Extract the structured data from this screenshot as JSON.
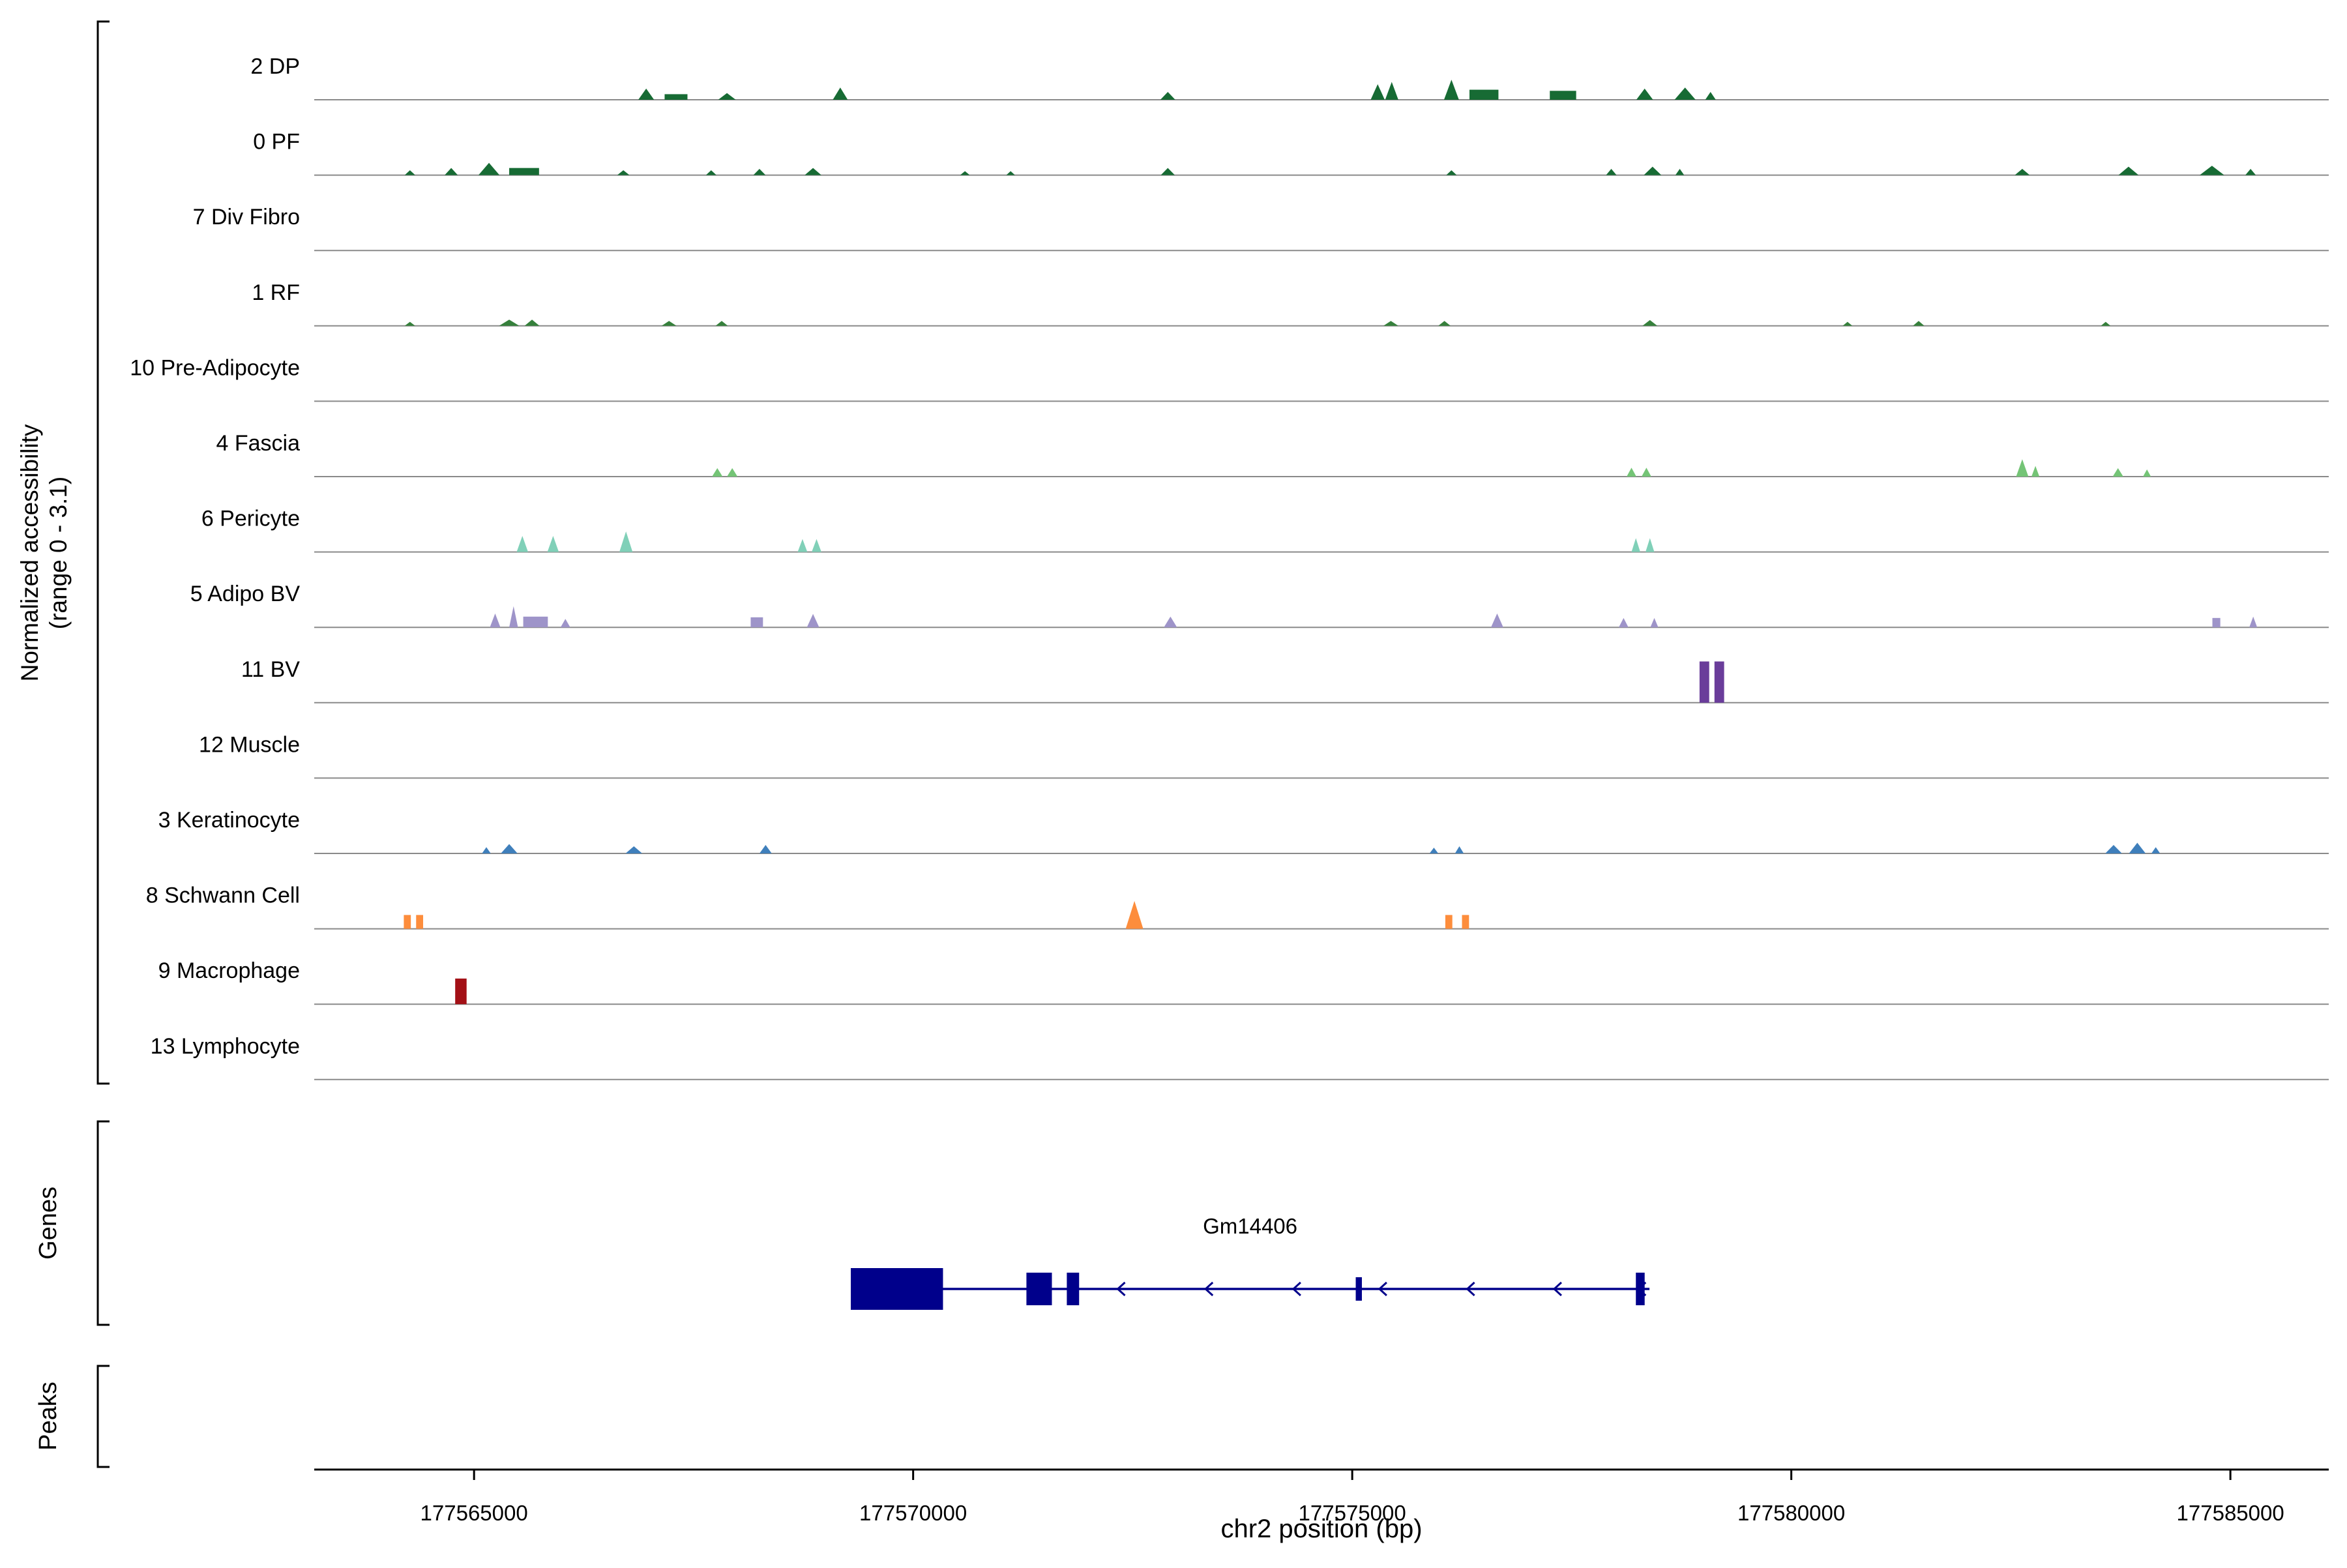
{
  "y_axis": {
    "label_line1": "Normalized accessibility",
    "label_line2": "(range 0 - 3.1)"
  },
  "sections": {
    "genes_label": "Genes",
    "peaks_label": "Peaks"
  },
  "x_axis": {
    "label": "chr2 position (bp)",
    "tick_labels": [
      "177565000",
      "177570000",
      "177575000",
      "177580000",
      "177585000"
    ]
  },
  "chart_data": {
    "type": "area",
    "title": "",
    "xlabel": "chr2 position (bp)",
    "region": {
      "chrom": "chr2",
      "start": 177563180,
      "end": 177586120
    },
    "track_value_range": [
      0,
      3.1
    ],
    "x_ticks": [
      177565000,
      177570000,
      177575000,
      177580000,
      177585000
    ],
    "grid": false,
    "tracks": [
      {
        "label": "2 DP",
        "color": "#176b34",
        "peaks": [
          [
            177566960,
            180,
            0.5,
            "t"
          ],
          [
            177567300,
            260,
            0.25,
            "r"
          ],
          [
            177567880,
            200,
            0.3,
            "t"
          ],
          [
            177569170,
            170,
            0.55,
            "t"
          ],
          [
            177572900,
            170,
            0.35,
            "t"
          ],
          [
            177575290,
            160,
            0.7,
            "t"
          ],
          [
            177575450,
            150,
            0.8,
            "t"
          ],
          [
            177576130,
            170,
            0.9,
            "t"
          ],
          [
            177576500,
            330,
            0.45,
            "r"
          ],
          [
            177577400,
            300,
            0.4,
            "r"
          ],
          [
            177578330,
            190,
            0.5,
            "t"
          ],
          [
            177578790,
            240,
            0.55,
            "t"
          ],
          [
            177579080,
            120,
            0.35,
            "t"
          ]
        ]
      },
      {
        "label": "0 PF",
        "color": "#176b34",
        "peaks": [
          [
            177564270,
            120,
            0.22,
            "t"
          ],
          [
            177564740,
            150,
            0.32,
            "t"
          ],
          [
            177565170,
            240,
            0.55,
            "t"
          ],
          [
            177565570,
            340,
            0.32,
            "r"
          ],
          [
            177566700,
            140,
            0.22,
            "t"
          ],
          [
            177567700,
            120,
            0.22,
            "t"
          ],
          [
            177568250,
            140,
            0.28,
            "t"
          ],
          [
            177568860,
            190,
            0.32,
            "t"
          ],
          [
            177570590,
            110,
            0.18,
            "t"
          ],
          [
            177571110,
            100,
            0.18,
            "t"
          ],
          [
            177572900,
            160,
            0.32,
            "t"
          ],
          [
            177576130,
            120,
            0.22,
            "t"
          ],
          [
            177577950,
            120,
            0.28,
            "t"
          ],
          [
            177578420,
            200,
            0.38,
            "t"
          ],
          [
            177578730,
            100,
            0.28,
            "t"
          ],
          [
            177582630,
            170,
            0.28,
            "t"
          ],
          [
            177583840,
            230,
            0.38,
            "t"
          ],
          [
            177584790,
            280,
            0.42,
            "t"
          ],
          [
            177585230,
            120,
            0.28,
            "t"
          ]
        ]
      },
      {
        "label": "7 Div Fibro",
        "color": null,
        "peaks": []
      },
      {
        "label": "1 RF",
        "color": "#35803b",
        "peaks": [
          [
            177564270,
            120,
            0.18,
            "t"
          ],
          [
            177565400,
            230,
            0.28,
            "t"
          ],
          [
            177565660,
            170,
            0.28,
            "t"
          ],
          [
            177567220,
            170,
            0.22,
            "t"
          ],
          [
            177567820,
            140,
            0.22,
            "t"
          ],
          [
            177575440,
            170,
            0.22,
            "t"
          ],
          [
            177576050,
            140,
            0.22,
            "t"
          ],
          [
            177578390,
            170,
            0.26,
            "t"
          ],
          [
            177580640,
            110,
            0.18,
            "t"
          ],
          [
            177581450,
            130,
            0.22,
            "t"
          ],
          [
            177583580,
            110,
            0.18,
            "t"
          ]
        ]
      },
      {
        "label": "10 Pre-Adipocyte",
        "color": null,
        "peaks": []
      },
      {
        "label": "4 Fascia",
        "color": "#74c476",
        "peaks": [
          [
            177567770,
            120,
            0.38,
            "t"
          ],
          [
            177567940,
            120,
            0.38,
            "t"
          ],
          [
            177578180,
            110,
            0.4,
            "t"
          ],
          [
            177578350,
            110,
            0.4,
            "t"
          ],
          [
            177582630,
            140,
            0.78,
            "t"
          ],
          [
            177582780,
            90,
            0.48,
            "t"
          ],
          [
            177583720,
            120,
            0.38,
            "t"
          ],
          [
            177584050,
            90,
            0.32,
            "t"
          ]
        ]
      },
      {
        "label": "6 Pericyte",
        "color": "#80d0b8",
        "peaks": [
          [
            177565550,
            130,
            0.72,
            "t"
          ],
          [
            177565900,
            130,
            0.72,
            "t"
          ],
          [
            177566730,
            150,
            0.92,
            "t"
          ],
          [
            177568740,
            110,
            0.58,
            "t"
          ],
          [
            177568900,
            110,
            0.58,
            "t"
          ],
          [
            177578230,
            100,
            0.62,
            "t"
          ],
          [
            177578390,
            100,
            0.62,
            "t"
          ]
        ]
      },
      {
        "label": "5 Adipo BV",
        "color": "#9e94c9",
        "peaks": [
          [
            177565240,
            120,
            0.62,
            "t"
          ],
          [
            177565450,
            100,
            0.95,
            "t"
          ],
          [
            177565700,
            280,
            0.48,
            "r"
          ],
          [
            177566040,
            110,
            0.38,
            "t"
          ],
          [
            177568220,
            140,
            0.45,
            "r"
          ],
          [
            177568860,
            140,
            0.6,
            "t"
          ],
          [
            177572930,
            150,
            0.48,
            "t"
          ],
          [
            177576650,
            140,
            0.62,
            "t"
          ],
          [
            177578090,
            110,
            0.42,
            "t"
          ],
          [
            177578440,
            90,
            0.42,
            "t"
          ],
          [
            177584840,
            90,
            0.42,
            "r"
          ],
          [
            177585260,
            90,
            0.48,
            "t"
          ]
        ]
      },
      {
        "label": "11 BV",
        "color": "#6a3d9a",
        "peaks": [
          [
            177579010,
            110,
            1.85,
            "r"
          ],
          [
            177579180,
            110,
            1.85,
            "r"
          ]
        ]
      },
      {
        "label": "12 Muscle",
        "color": null,
        "peaks": []
      },
      {
        "label": "3 Keratinocyte",
        "color": "#3f7fbb",
        "peaks": [
          [
            177565140,
            100,
            0.28,
            "t"
          ],
          [
            177565400,
            190,
            0.42,
            "t"
          ],
          [
            177566820,
            190,
            0.32,
            "t"
          ],
          [
            177568320,
            140,
            0.38,
            "t"
          ],
          [
            177575930,
            100,
            0.26,
            "t"
          ],
          [
            177576220,
            100,
            0.32,
            "t"
          ],
          [
            177583670,
            190,
            0.38,
            "t"
          ],
          [
            177583940,
            190,
            0.48,
            "t"
          ],
          [
            177584150,
            100,
            0.28,
            "t"
          ]
        ]
      },
      {
        "label": "8 Schwann Cell",
        "color": "#fd8d3c",
        "peaks": [
          [
            177564240,
            80,
            0.62,
            "r"
          ],
          [
            177564380,
            80,
            0.62,
            "r"
          ],
          [
            177572520,
            200,
            1.25,
            "t"
          ],
          [
            177576100,
            80,
            0.62,
            "r"
          ],
          [
            177576290,
            80,
            0.62,
            "r"
          ]
        ]
      },
      {
        "label": "9 Macrophage",
        "color": "#a31016",
        "peaks": [
          [
            177564850,
            130,
            1.15,
            "r"
          ]
        ]
      },
      {
        "label": "13 Lymphocyte",
        "color": null,
        "peaks": []
      }
    ],
    "genes": [
      {
        "name": "Gm14406",
        "strand": "-",
        "start": 177569290,
        "end": 177578385,
        "color": "#00008b",
        "exons": [
          [
            177569290,
            177570340,
            "large"
          ],
          [
            177571290,
            177571580,
            "exon"
          ],
          [
            177571750,
            177571890,
            "exon"
          ],
          [
            177575040,
            177575110,
            "tick"
          ],
          [
            177578230,
            177578330,
            "exon"
          ]
        ],
        "arrows": [
          177572330,
          177573330,
          177574330,
          177575310,
          177576310,
          177577300,
          177578260
        ]
      }
    ],
    "peaks_track": []
  }
}
